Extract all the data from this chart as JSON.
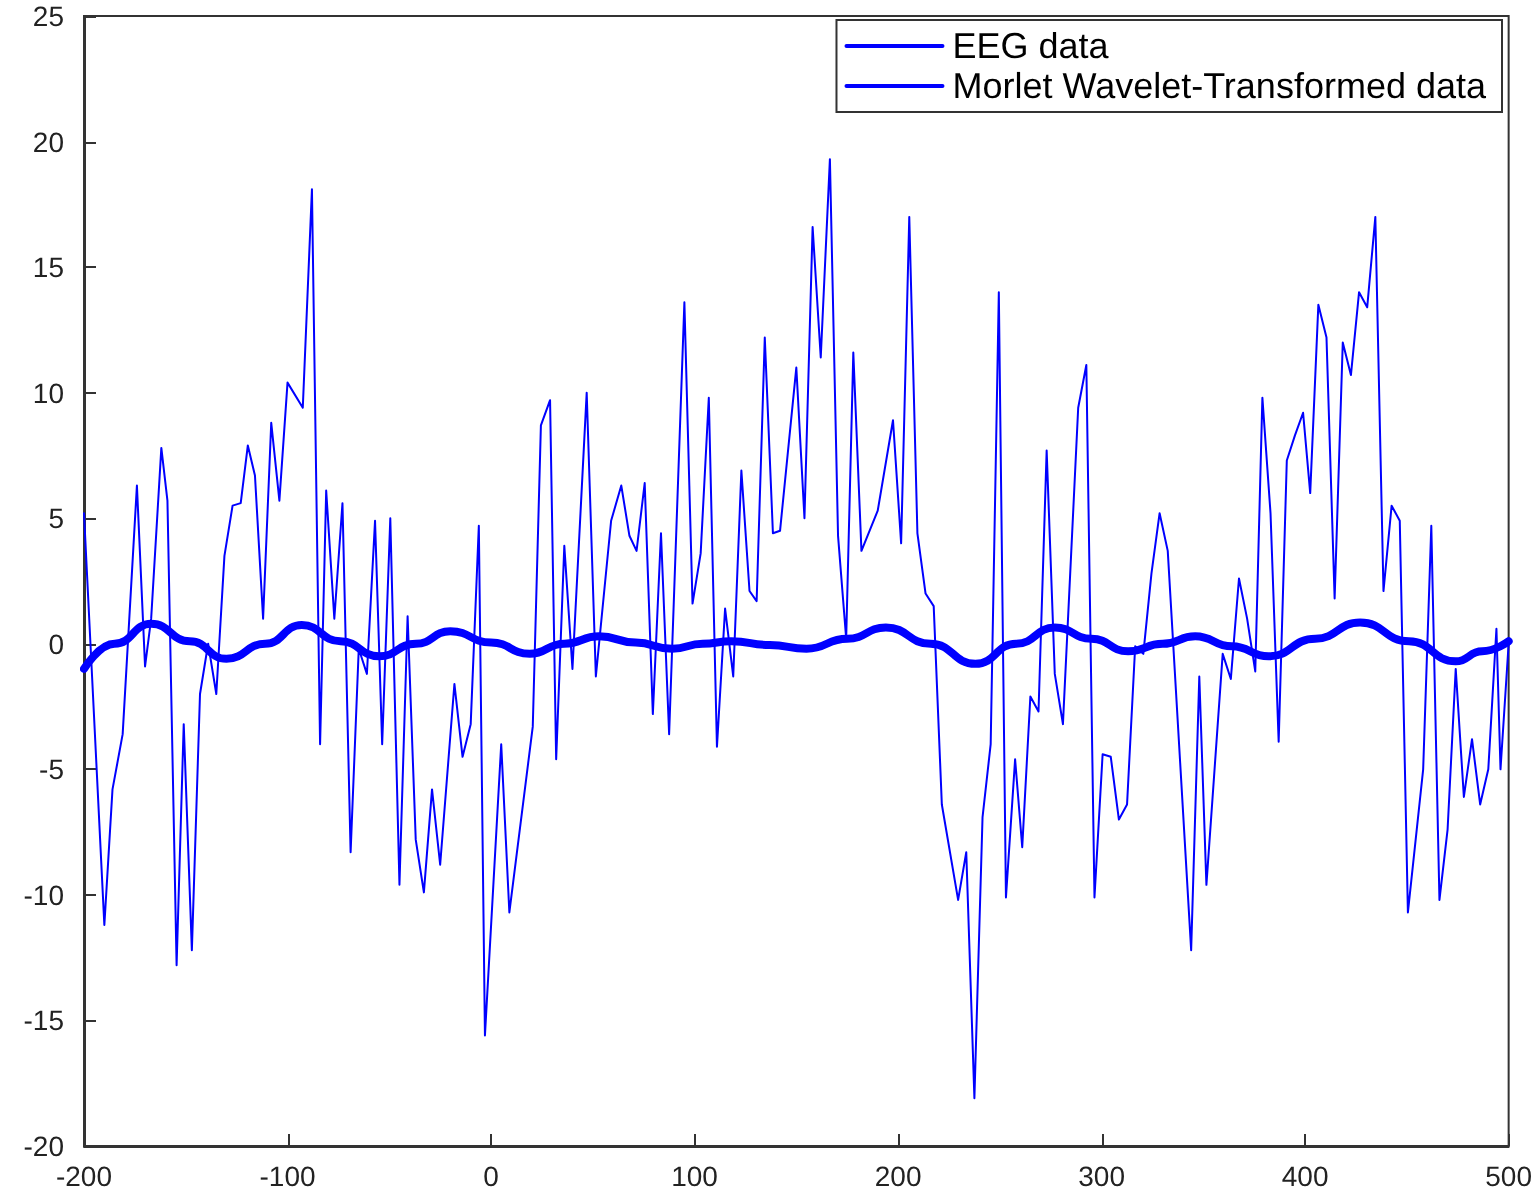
{
  "chart_data": {
    "type": "line",
    "xlim": [
      -200,
      500
    ],
    "ylim": [
      -20,
      25
    ],
    "xticks": [
      -200,
      -100,
      0,
      100,
      200,
      300,
      400,
      500
    ],
    "yticks": [
      -20,
      -15,
      -10,
      -5,
      0,
      5,
      10,
      15,
      20,
      25
    ],
    "legend": "top right",
    "marker": "none",
    "line_style": "solid",
    "series": [
      {
        "name": "EEG data",
        "color": "#0000ff",
        "x": [
          -200,
          -190,
          -186,
          -181,
          -174,
          -170,
          -167,
          -162,
          -159,
          -154.5,
          -151,
          -147,
          -143,
          -139,
          -135,
          -131,
          -127,
          -123,
          -119.5,
          -116,
          -112,
          -108,
          -104,
          -100,
          -92.5,
          -88,
          -84,
          -81,
          -77,
          -73,
          -69,
          -65,
          -61,
          -57,
          -53.5,
          -49.5,
          -45,
          -41,
          -37,
          -33,
          -29,
          -25,
          -18,
          -14,
          -10,
          -6,
          -3,
          5,
          9,
          20.5,
          24.5,
          29,
          32,
          36,
          40,
          47,
          51.5,
          59,
          64,
          68,
          71.5,
          75.5,
          79.5,
          83.5,
          87.5,
          95,
          99,
          103,
          107,
          111,
          115,
          119,
          123,
          127,
          130.5,
          134.5,
          138.5,
          142,
          150,
          154,
          158,
          162,
          166.5,
          170.5,
          174.5,
          178,
          182,
          190,
          197.5,
          201.5,
          205.5,
          209.5,
          213.5,
          217.5,
          221.5,
          229.5,
          233.5,
          237.5,
          241.5,
          245.5,
          249.5,
          253,
          257.5,
          261,
          265,
          269,
          273,
          277,
          281,
          288.5,
          292.5,
          296.5,
          300.5,
          304.5,
          308.5,
          312.5,
          316.5,
          320.5,
          324.5,
          328.5,
          332.5,
          344,
          348,
          351.5,
          359.5,
          363.5,
          367.5,
          371.5,
          375.5,
          379,
          383,
          387,
          391,
          395,
          399,
          402.5,
          406.5,
          410.5,
          414.5,
          418.5,
          422.5,
          426.5,
          430.5,
          434.5,
          438.5,
          442.5,
          446.5,
          450.5,
          458,
          462,
          466,
          470,
          474,
          478,
          482,
          486,
          490,
          494,
          496,
          500
        ],
        "values": [
          5.2,
          -11.2,
          -5.8,
          -3.6,
          6.3,
          -0.9,
          1,
          7.8,
          5.7,
          -12.8,
          -3.2,
          -12.2,
          -2,
          0,
          -2,
          3.5,
          5.5,
          5.6,
          7.9,
          6.7,
          1,
          8.8,
          5.7,
          10.4,
          9.4,
          18.1,
          -4,
          6.1,
          1,
          5.6,
          -8.3,
          -0.2,
          -1.2,
          4.9,
          -4,
          5,
          -9.6,
          1.1,
          -7.8,
          -9.9,
          -5.8,
          -8.8,
          -1.6,
          -4.5,
          -3.2,
          4.7,
          -15.6,
          -4,
          -10.7,
          -3.3,
          8.7,
          9.7,
          -4.6,
          3.9,
          -1,
          10,
          -1.3,
          4.9,
          6.3,
          4.3,
          3.7,
          6.4,
          -2.8,
          4.4,
          -3.6,
          13.6,
          1.6,
          3.6,
          9.8,
          -4.1,
          1.4,
          -1.3,
          6.9,
          2.1,
          1.7,
          12.2,
          4.4,
          4.5,
          11,
          5,
          16.6,
          11.4,
          19.3,
          4.3,
          0.2,
          11.6,
          3.7,
          5.3,
          8.9,
          4,
          17,
          4.4,
          2,
          1.5,
          -6.4,
          -10.2,
          -8.3,
          -18.1,
          -6.9,
          -4,
          14,
          -10.1,
          -4.6,
          -8.1,
          -2.1,
          -2.7,
          7.7,
          -1.2,
          -3.2,
          9.4,
          11.1,
          -10.1,
          -4.4,
          -4.5,
          -7,
          -6.4,
          -0.1,
          -0.4,
          2.8,
          5.2,
          3.7,
          -12.2,
          -1.3,
          -9.6,
          -0.4,
          -1.4,
          2.6,
          1,
          -1.1,
          9.8,
          5.2,
          -3.9,
          7.3,
          8.3,
          9.2,
          6,
          13.5,
          12.2,
          1.8,
          12,
          10.7,
          14,
          13.4,
          17,
          2.1,
          5.5,
          4.9,
          -10.7,
          -5,
          4.7,
          -10.2,
          -7.4,
          -1,
          -6.1,
          -3.8,
          -6.4,
          -5,
          0.6,
          -5,
          0
        ]
      },
      {
        "name": "Morlet Wavelet-Transformed data",
        "color": "#0000ff",
        "x": [
          -200,
          -185,
          -167,
          -148,
          -130,
          -111,
          -93,
          -74,
          -55,
          -37,
          -20,
          0,
          19,
          36,
          53,
          71,
          89,
          104,
          118,
          137,
          155,
          175,
          194,
          216,
          238,
          258,
          277,
          295,
          313,
          330,
          346,
          364,
          382,
          405,
          427,
          451,
          474,
          487,
          500
        ],
        "values": [
          -1,
          0,
          0.8,
          0.1,
          -0.6,
          0,
          0.75,
          0.1,
          -0.5,
          0,
          0.5,
          0.05,
          -0.4,
          0,
          0.3,
          0.05,
          -0.2,
          0,
          0.1,
          -0.05,
          -0.2,
          0.2,
          0.65,
          0,
          -0.8,
          0,
          0.65,
          0.2,
          -0.3,
          0,
          0.3,
          -0.1,
          -0.5,
          0.2,
          0.85,
          0.1,
          -0.7,
          -0.3,
          0.1
        ]
      }
    ]
  }
}
